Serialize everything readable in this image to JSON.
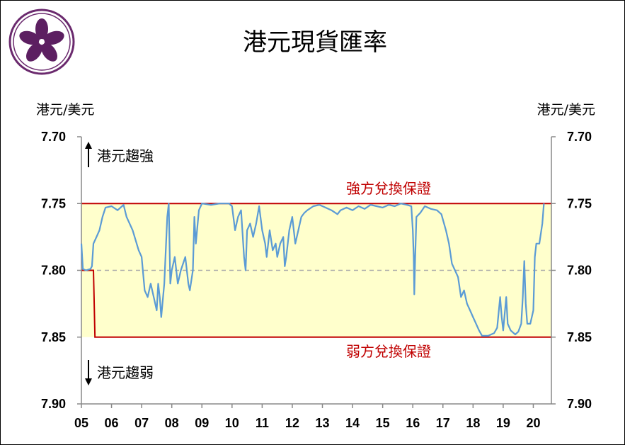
{
  "title": "港元現貨匯率",
  "logo_name": "bauhinia-logo",
  "chart_data": {
    "type": "line",
    "title": "港元現貨匯率",
    "ylabel_left": "港元/美元",
    "ylabel_right": "港元/美元",
    "y_inverted": true,
    "ylim": [
      7.7,
      7.9
    ],
    "yticks": [
      "7.70",
      "7.75",
      "7.80",
      "7.85",
      "7.90"
    ],
    "xlim": [
      2005.0,
      2020.6
    ],
    "xticks": [
      "05",
      "06",
      "07",
      "08",
      "09",
      "10",
      "11",
      "12",
      "13",
      "14",
      "15",
      "16",
      "17",
      "18",
      "19",
      "20"
    ],
    "grid": false,
    "colors": {
      "series": "#5b9bd5",
      "band_line": "#c00000",
      "band_fill": "#ffffcc",
      "mid_line": "#aaaaaa"
    },
    "band": {
      "strong": 7.75,
      "weak": 7.85,
      "midpoint": 7.8
    },
    "annotations": {
      "strong_label": "強方兌換保證",
      "weak_label": "弱方兌換保證",
      "up_label": "港元趨強",
      "down_label": "港元趨弱"
    },
    "weak_side_path": [
      {
        "x": 2005.0,
        "y": 7.8
      },
      {
        "x": 2005.4,
        "y": 7.8
      },
      {
        "x": 2005.45,
        "y": 7.85
      }
    ],
    "series": [
      {
        "values": [
          [
            2005.0,
            7.78
          ],
          [
            2005.05,
            7.799
          ],
          [
            2005.15,
            7.8
          ],
          [
            2005.3,
            7.799
          ],
          [
            2005.35,
            7.797
          ],
          [
            2005.4,
            7.78
          ],
          [
            2005.5,
            7.775
          ],
          [
            2005.6,
            7.77
          ],
          [
            2005.7,
            7.76
          ],
          [
            2005.8,
            7.753
          ],
          [
            2006.0,
            7.752
          ],
          [
            2006.2,
            7.755
          ],
          [
            2006.4,
            7.751
          ],
          [
            2006.5,
            7.76
          ],
          [
            2006.7,
            7.77
          ],
          [
            2006.9,
            7.785
          ],
          [
            2007.0,
            7.79
          ],
          [
            2007.1,
            7.815
          ],
          [
            2007.2,
            7.82
          ],
          [
            2007.3,
            7.81
          ],
          [
            2007.4,
            7.82
          ],
          [
            2007.5,
            7.83
          ],
          [
            2007.55,
            7.81
          ],
          [
            2007.6,
            7.82
          ],
          [
            2007.65,
            7.835
          ],
          [
            2007.75,
            7.81
          ],
          [
            2007.85,
            7.76
          ],
          [
            2007.9,
            7.75
          ],
          [
            2007.95,
            7.81
          ],
          [
            2008.0,
            7.8
          ],
          [
            2008.1,
            7.79
          ],
          [
            2008.2,
            7.81
          ],
          [
            2008.3,
            7.8
          ],
          [
            2008.45,
            7.79
          ],
          [
            2008.55,
            7.81
          ],
          [
            2008.6,
            7.815
          ],
          [
            2008.7,
            7.8
          ],
          [
            2008.75,
            7.76
          ],
          [
            2008.8,
            7.78
          ],
          [
            2008.9,
            7.755
          ],
          [
            2009.0,
            7.75
          ],
          [
            2009.3,
            7.751
          ],
          [
            2009.6,
            7.75
          ],
          [
            2009.9,
            7.75
          ],
          [
            2010.0,
            7.752
          ],
          [
            2010.1,
            7.77
          ],
          [
            2010.2,
            7.76
          ],
          [
            2010.3,
            7.755
          ],
          [
            2010.4,
            7.79
          ],
          [
            2010.45,
            7.8
          ],
          [
            2010.5,
            7.77
          ],
          [
            2010.6,
            7.765
          ],
          [
            2010.7,
            7.775
          ],
          [
            2010.8,
            7.765
          ],
          [
            2010.9,
            7.752
          ],
          [
            2011.0,
            7.77
          ],
          [
            2011.1,
            7.78
          ],
          [
            2011.15,
            7.79
          ],
          [
            2011.25,
            7.77
          ],
          [
            2011.35,
            7.785
          ],
          [
            2011.45,
            7.78
          ],
          [
            2011.5,
            7.79
          ],
          [
            2011.6,
            7.78
          ],
          [
            2011.7,
            7.775
          ],
          [
            2011.75,
            7.797
          ],
          [
            2011.8,
            7.79
          ],
          [
            2011.9,
            7.77
          ],
          [
            2012.0,
            7.76
          ],
          [
            2012.1,
            7.78
          ],
          [
            2012.2,
            7.77
          ],
          [
            2012.3,
            7.76
          ],
          [
            2012.4,
            7.757
          ],
          [
            2012.5,
            7.755
          ],
          [
            2012.7,
            7.752
          ],
          [
            2012.9,
            7.751
          ],
          [
            2013.1,
            7.753
          ],
          [
            2013.3,
            7.755
          ],
          [
            2013.5,
            7.758
          ],
          [
            2013.6,
            7.755
          ],
          [
            2013.8,
            7.753
          ],
          [
            2014.0,
            7.755
          ],
          [
            2014.2,
            7.752
          ],
          [
            2014.4,
            7.754
          ],
          [
            2014.6,
            7.751
          ],
          [
            2014.8,
            7.752
          ],
          [
            2015.0,
            7.753
          ],
          [
            2015.2,
            7.751
          ],
          [
            2015.4,
            7.752
          ],
          [
            2015.6,
            7.75
          ],
          [
            2015.8,
            7.751
          ],
          [
            2015.95,
            7.752
          ],
          [
            2016.0,
            7.77
          ],
          [
            2016.03,
            7.79
          ],
          [
            2016.05,
            7.818
          ],
          [
            2016.08,
            7.79
          ],
          [
            2016.12,
            7.76
          ],
          [
            2016.25,
            7.757
          ],
          [
            2016.4,
            7.752
          ],
          [
            2016.6,
            7.754
          ],
          [
            2016.8,
            7.755
          ],
          [
            2016.95,
            7.758
          ],
          [
            2017.1,
            7.77
          ],
          [
            2017.2,
            7.78
          ],
          [
            2017.3,
            7.795
          ],
          [
            2017.4,
            7.8
          ],
          [
            2017.5,
            7.805
          ],
          [
            2017.6,
            7.82
          ],
          [
            2017.7,
            7.815
          ],
          [
            2017.8,
            7.825
          ],
          [
            2017.9,
            7.83
          ],
          [
            2018.0,
            7.835
          ],
          [
            2018.1,
            7.84
          ],
          [
            2018.2,
            7.845
          ],
          [
            2018.3,
            7.849
          ],
          [
            2018.5,
            7.849
          ],
          [
            2018.7,
            7.847
          ],
          [
            2018.8,
            7.843
          ],
          [
            2018.9,
            7.82
          ],
          [
            2018.95,
            7.835
          ],
          [
            2019.0,
            7.845
          ],
          [
            2019.1,
            7.82
          ],
          [
            2019.15,
            7.84
          ],
          [
            2019.25,
            7.845
          ],
          [
            2019.4,
            7.848
          ],
          [
            2019.5,
            7.846
          ],
          [
            2019.6,
            7.84
          ],
          [
            2019.65,
            7.82
          ],
          [
            2019.7,
            7.793
          ],
          [
            2019.75,
            7.825
          ],
          [
            2019.8,
            7.84
          ],
          [
            2019.9,
            7.84
          ],
          [
            2020.0,
            7.83
          ],
          [
            2020.05,
            7.79
          ],
          [
            2020.1,
            7.78
          ],
          [
            2020.2,
            7.78
          ],
          [
            2020.3,
            7.765
          ],
          [
            2020.35,
            7.75
          ]
        ]
      }
    ]
  }
}
